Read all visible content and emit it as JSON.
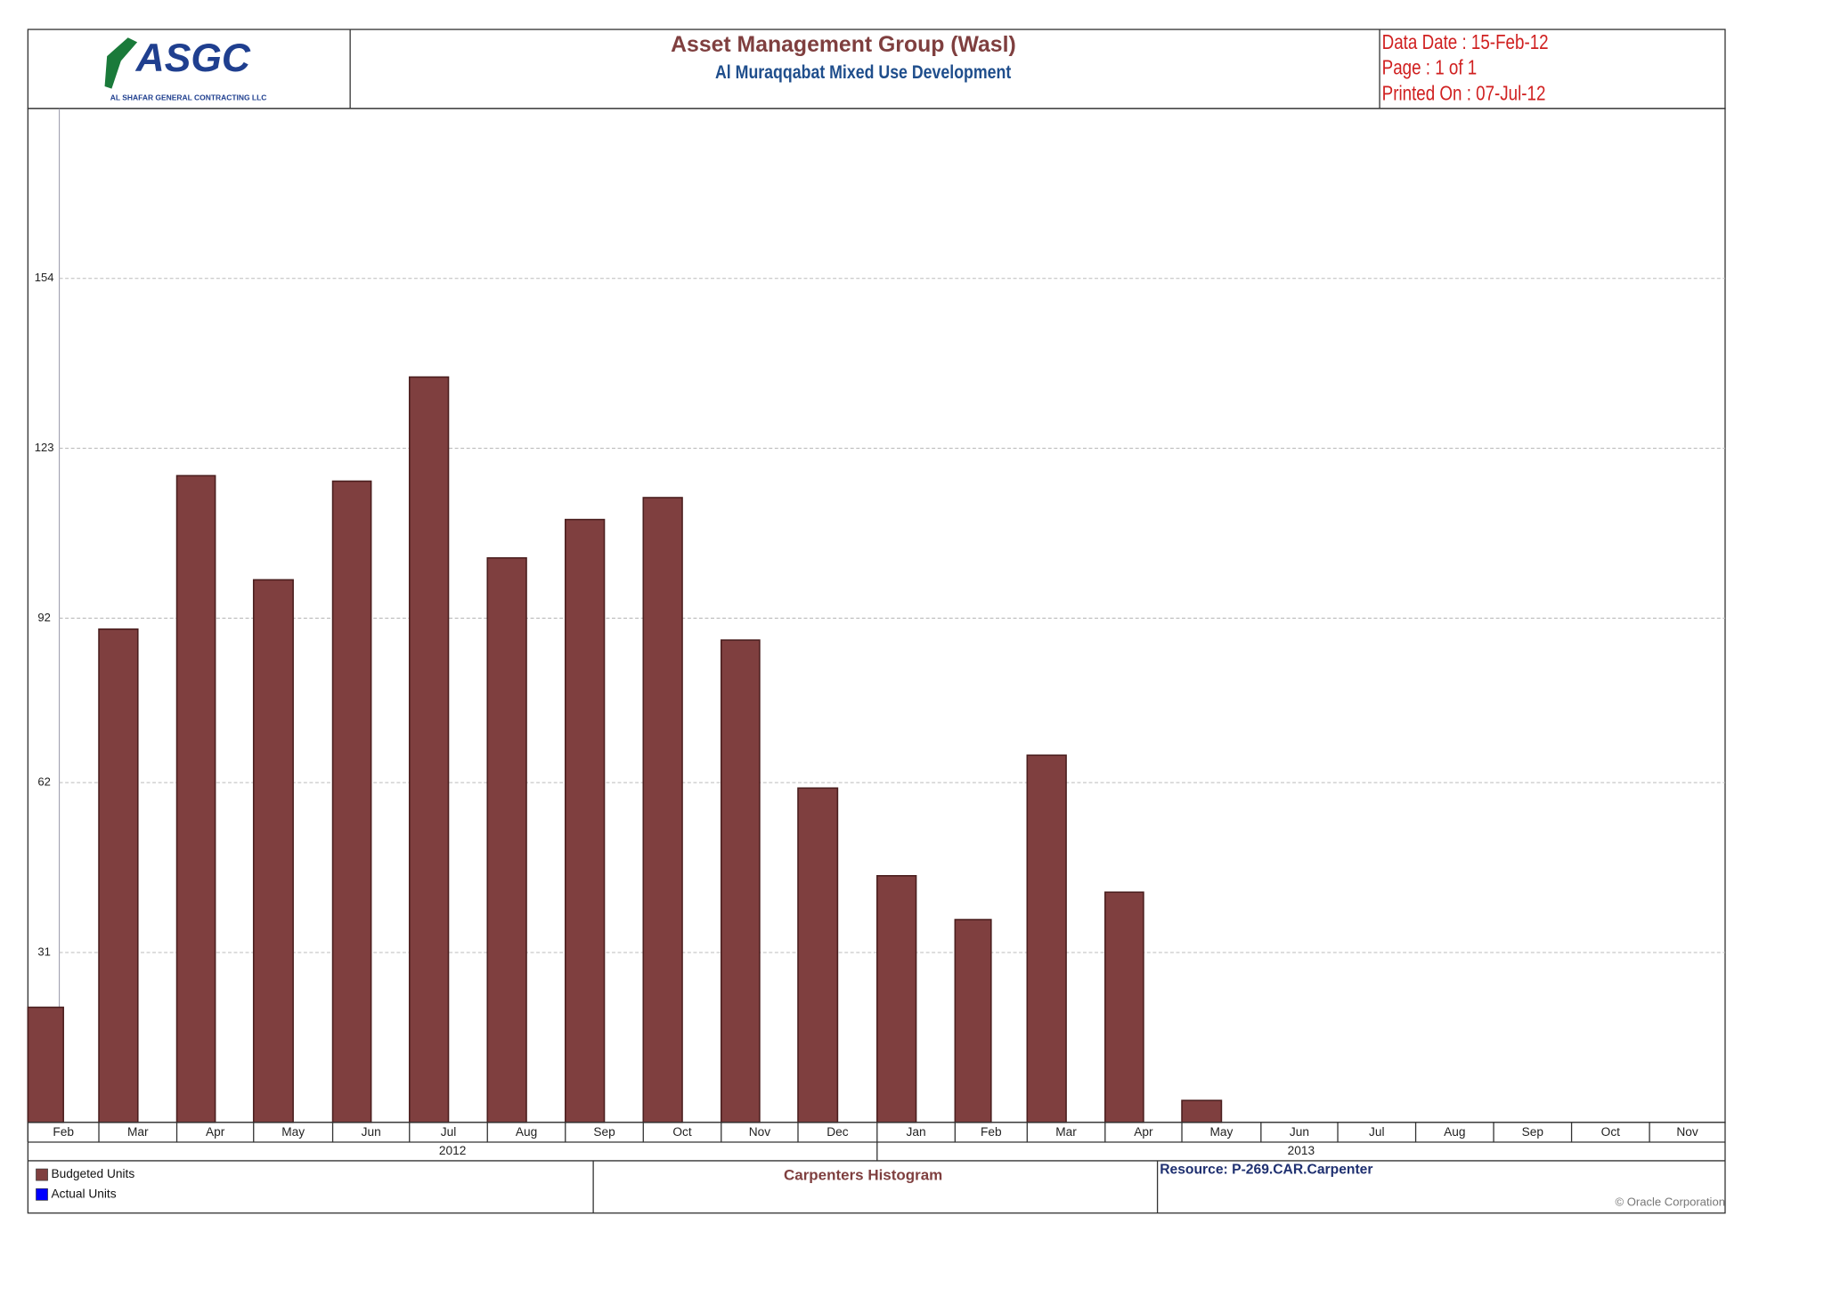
{
  "chart_data": {
    "type": "bar",
    "logo": {
      "name": "ASGC",
      "caption": "AL SHAFAR GENERAL CONTRACTING LLC"
    },
    "title": "Asset Management Group (Wasl)",
    "subtitle": "Al Muraqqabat Mixed Use Development",
    "info": [
      "Data Date : 15-Feb-12",
      "Page : 1 of 1",
      "Printed On : 07-Jul-12"
    ],
    "categories": [
      "Feb",
      "Mar",
      "Apr",
      "May",
      "Jun",
      "Jul",
      "Aug",
      "Sep",
      "Oct",
      "Nov",
      "Dec",
      "Jan",
      "Feb",
      "Mar",
      "Apr",
      "May",
      "Jun",
      "Jul",
      "Aug",
      "Sep",
      "Oct",
      "Nov"
    ],
    "years": [
      "2012",
      "2013"
    ],
    "values": [
      21,
      90,
      118,
      99,
      117,
      136,
      103,
      110,
      114,
      88,
      61,
      45,
      37,
      67,
      42,
      4,
      0,
      0,
      0,
      0,
      0,
      0
    ],
    "color": "#7f3f3f",
    "ylim": [
      0,
      185
    ],
    "yticks": [
      31,
      62,
      92,
      123,
      154
    ],
    "grid": true,
    "legend": [
      {
        "name": "Budgeted Units",
        "color": "#7f3f3f"
      },
      {
        "name": "Actual Units",
        "color": "#0000ff"
      }
    ],
    "footer_title": "Carpenters Histogram",
    "resource": "Resource: P-269.CAR.Carpenter",
    "copyright": "© Oracle Corporation"
  }
}
